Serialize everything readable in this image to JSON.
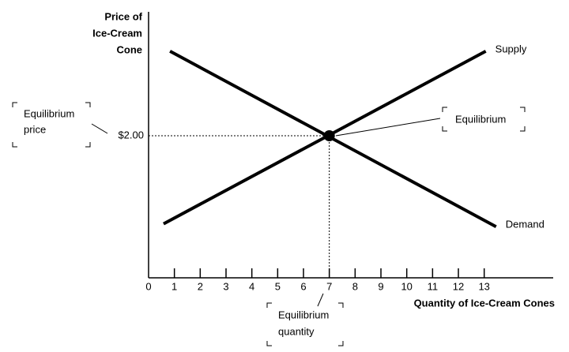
{
  "chart_data": {
    "type": "line",
    "y_label": [
      "Price of",
      "Ice-Cream",
      "Cone"
    ],
    "x_label": "Quantity of Ice-Cream Cones",
    "xlim": [
      0,
      15.66
    ],
    "ylim": [
      0,
      3.74
    ],
    "xticks": [
      0,
      1,
      2,
      3,
      4,
      5,
      6,
      7,
      8,
      9,
      10,
      11,
      12,
      13
    ],
    "yticks": [
      {
        "value": 2,
        "label": "$2.00"
      }
    ],
    "series": [
      {
        "name": "Supply",
        "color": "#000000",
        "x": [
          0.58,
          13.06
        ],
        "values": [
          0.76,
          3.19
        ]
      },
      {
        "name": "Demand",
        "color": "#000000",
        "x": [
          0.83,
          13.46
        ],
        "values": [
          3.19,
          0.72
        ]
      }
    ],
    "equilibrium": {
      "x": 7,
      "value": 2
    },
    "annotations": {
      "price": [
        "Equilibrium",
        "price"
      ],
      "point": "Equilibrium",
      "quantity": [
        "Equilibrium",
        "quantity"
      ]
    }
  }
}
